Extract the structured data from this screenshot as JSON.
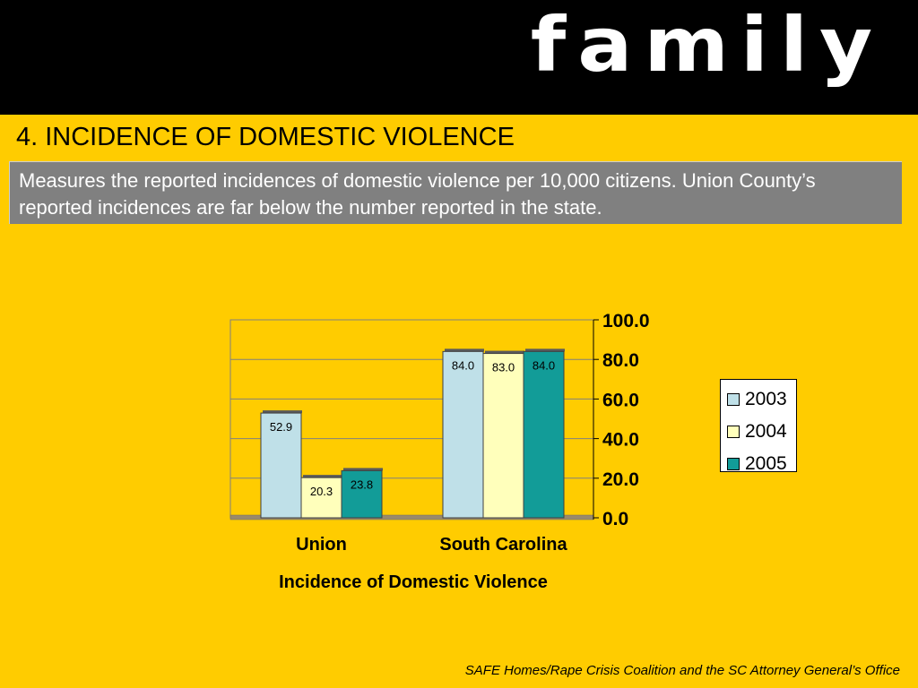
{
  "banner": {
    "word": "family"
  },
  "slide": {
    "title": "4.  INCIDENCE OF DOMESTIC VIOLENCE",
    "description": "Measures the reported incidences of domestic violence per 10,000 citizens.  Union County’s reported incidences are far below the number reported in the state.",
    "source": "SAFE Homes/Rape Crisis Coalition and the SC Attorney General’s Office"
  },
  "chart_data": {
    "type": "bar",
    "title": "",
    "xlabel": "Incidence of Domestic Violence",
    "ylabel": "",
    "categories": [
      "Union",
      "South Carolina"
    ],
    "series": [
      {
        "name": "2003",
        "values": [
          52.9,
          84.0
        ],
        "color": "#BFE0E8"
      },
      {
        "name": "2004",
        "values": [
          20.3,
          83.0
        ],
        "color": "#FFFFBB"
      },
      {
        "name": "2005",
        "values": [
          23.8,
          84.0
        ],
        "color": "#129C98"
      }
    ],
    "ylim": [
      0,
      100
    ],
    "yticks": [
      "0.0",
      "20.0",
      "40.0",
      "60.0",
      "80.0",
      "100.0"
    ],
    "y_axis_side": "right",
    "grid": true,
    "legend_position": "right",
    "colors": {
      "background": "#FFCC00",
      "gridline": "#808080",
      "label_text": "#000000"
    }
  }
}
